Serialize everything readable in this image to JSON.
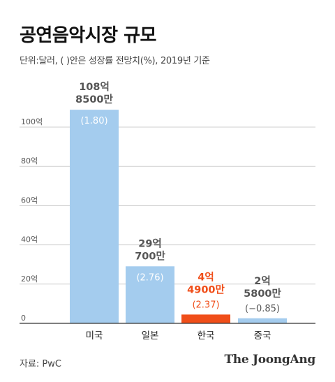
{
  "title": "공연음악시장 규모",
  "subtitle": "단위:달러, ( )안은 성장률 전망치(%), 2019년 기준",
  "source": "자료: PwC",
  "brand": "The JoongAng",
  "colors": {
    "bar": "#a4ccee",
    "highlight": "#f04e19",
    "label": "#555555",
    "grid": "#cfcfcf",
    "axis": "#333333"
  },
  "chart_data": {
    "type": "bar",
    "ylabel": "",
    "xlabel": "",
    "ylim": [
      0,
      100
    ],
    "yticks": [
      {
        "value": 0,
        "label": "0"
      },
      {
        "value": 20,
        "label": "20억"
      },
      {
        "value": 40,
        "label": "40억"
      },
      {
        "value": 60,
        "label": "60억"
      },
      {
        "value": 80,
        "label": "80억"
      },
      {
        "value": 100,
        "label": "100억"
      }
    ],
    "categories": [
      "미국",
      "일본",
      "한국",
      "중국"
    ],
    "values": [
      108.85,
      29.07,
      4.49,
      2.58
    ],
    "value_labels": [
      [
        "108억",
        "8500만"
      ],
      [
        "29억",
        "700만"
      ],
      [
        "4억",
        "4900만"
      ],
      [
        "2억",
        "5800만"
      ]
    ],
    "growth_labels": [
      "(1.80)",
      "(2.76)",
      "(2.37)",
      "(−0.85)"
    ],
    "highlight_index": 2,
    "grid": true
  }
}
